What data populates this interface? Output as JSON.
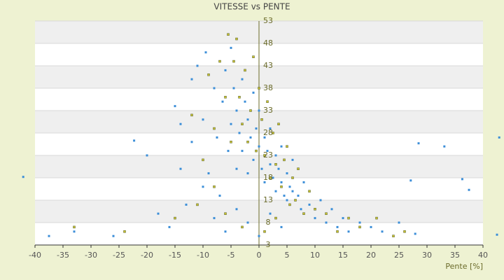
{
  "chart_data": {
    "type": "scatter",
    "title": "VITESSE vs PENTE",
    "x_label": "Pente [%]",
    "xlim": [
      -40,
      40
    ],
    "xticks": [
      -40,
      -35,
      -30,
      -25,
      -20,
      -15,
      -10,
      -5,
      0,
      5,
      10,
      15,
      20,
      25,
      30,
      35,
      40
    ],
    "ylim": [
      3,
      53
    ],
    "yticks": [
      3,
      8,
      13,
      18,
      23,
      28,
      33,
      38,
      43,
      48,
      53
    ],
    "grid": true,
    "series": [
      {
        "color": "#3b8ed8",
        "x": [
          -37.5,
          -33,
          -26,
          -22.3,
          -20,
          -42.1,
          42.9,
          28.5,
          33.1,
          36.3,
          37.5,
          27.1,
          42.5,
          27.9,
          -16,
          -15,
          -14,
          -13,
          -12,
          -11,
          -10,
          -9.5,
          -9,
          -8,
          -7.5,
          -7,
          -6.5,
          -6,
          -5.5,
          -5,
          -5,
          -4.5,
          -4,
          -4,
          -3.5,
          -3,
          -3,
          -2.5,
          -2,
          -2,
          -1.5,
          -1,
          -1,
          -0.5,
          0,
          0,
          0.5,
          1,
          1,
          1.5,
          2,
          2,
          2.5,
          3,
          3,
          3.5,
          4,
          4,
          4.5,
          5,
          5,
          5.5,
          6,
          6,
          7,
          7.5,
          8,
          9,
          10,
          11,
          12,
          13,
          14,
          15,
          16,
          18,
          20,
          22,
          25,
          -10,
          -8,
          -6,
          -4,
          -2,
          0,
          2,
          4,
          -12,
          -14,
          -18
        ],
        "y": [
          5,
          6,
          5,
          26.3,
          23,
          18.2,
          27,
          25.7,
          25,
          17.7,
          15.3,
          17.4,
          5.3,
          5.5,
          7,
          34,
          20,
          12,
          26,
          43,
          31,
          46,
          19,
          38,
          27,
          14,
          35,
          42,
          24,
          47,
          30,
          38,
          20,
          33,
          28,
          40,
          24,
          35,
          19,
          31,
          27,
          37,
          22,
          29,
          25,
          33,
          20,
          27,
          17,
          24,
          21,
          29,
          18,
          23,
          15,
          20,
          17,
          25,
          14,
          19,
          13,
          16,
          15,
          22,
          14,
          11,
          17,
          12,
          9,
          13,
          8,
          11,
          7,
          9,
          6,
          8,
          7,
          6,
          8,
          16,
          9,
          6,
          11,
          8,
          5,
          10,
          7,
          40,
          30,
          10
        ]
      },
      {
        "color": "#c8c030",
        "x": [
          -33,
          -24,
          -15,
          -12,
          -10,
          -9,
          -8,
          -7,
          -6,
          -5.5,
          -5,
          -4.5,
          -4,
          -3.5,
          -3,
          -2.5,
          -2,
          -1.5,
          -1,
          -0.5,
          0,
          0.5,
          1,
          1.5,
          2,
          2.5,
          3,
          3.5,
          4,
          4.5,
          5,
          5.5,
          6,
          6.5,
          7,
          8,
          9,
          10,
          12,
          14,
          16,
          18,
          21,
          24,
          26,
          -6,
          -3,
          1,
          3,
          -8,
          -11
        ],
        "y": [
          7,
          6,
          9,
          32,
          22,
          41,
          29,
          44,
          36,
          50,
          26,
          44,
          49,
          36,
          30,
          42,
          26,
          33,
          45,
          24,
          38,
          31,
          23,
          35,
          18,
          28,
          21,
          30,
          16,
          22,
          25,
          12,
          18,
          13,
          20,
          10,
          15,
          11,
          10,
          6,
          9,
          7,
          9,
          5,
          6,
          10,
          7,
          6,
          9,
          16,
          12
        ]
      }
    ]
  }
}
